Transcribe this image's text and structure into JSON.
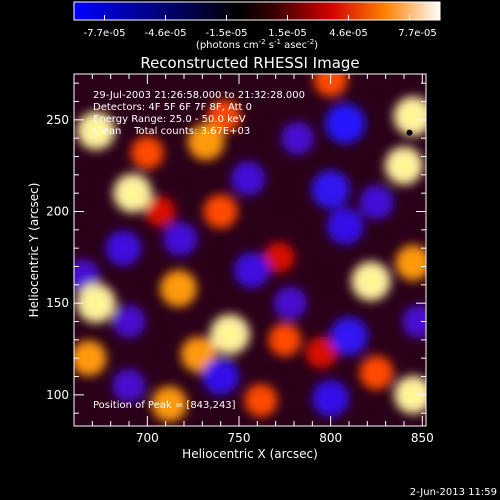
{
  "chart_data": {
    "type": "heatmap",
    "title": "Reconstructed RHESSI Image",
    "xlabel": "Heliocentric X (arcsec)",
    "ylabel": "Heliocentric Y (arcsec)",
    "xlim": [
      660,
      852
    ],
    "ylim": [
      83,
      275
    ],
    "x_ticks": [
      700,
      750,
      800,
      850
    ],
    "y_ticks": [
      100,
      150,
      200,
      250
    ],
    "colorbar": {
      "ticks": [
        "-7.7e-05",
        "-4.6e-05",
        "-1.5e-05",
        "1.5e-05",
        "4.6e-05",
        "7.7e-05"
      ],
      "range": [
        -7.7e-05,
        7.7e-05
      ],
      "unit_text": "(photons cm",
      "unit_sup1": "-2",
      "unit_mid": " s",
      "unit_sup2": "-1",
      "unit_end": " asec",
      "unit_sup3": "-2",
      "unit_close": ")"
    },
    "info_lines": [
      "29-Jul-2003 21:26:58.000 to 21:32:28.000",
      "Detectors: 4F 5F 6F 7F 8F, Att 0",
      "Energy Range: 25.0 - 50.0 keV",
      "Clean    Total counts: 3.67E+03"
    ],
    "peak_text": "Position of Peak = [843,243]",
    "peak_position": [
      843,
      243
    ],
    "blobs": [
      {
        "x": 672,
        "y": 244,
        "value": 7e-05
      },
      {
        "x": 700,
        "y": 232,
        "value": 5e-05
      },
      {
        "x": 732,
        "y": 238,
        "value": 6.5e-05
      },
      {
        "x": 742,
        "y": 252,
        "value": 5e-05
      },
      {
        "x": 692,
        "y": 210,
        "value": 7.2e-05
      },
      {
        "x": 740,
        "y": 200,
        "value": 5.5e-05
      },
      {
        "x": 707,
        "y": 200,
        "value": 4e-05
      },
      {
        "x": 845,
        "y": 252,
        "value": 7.5e-05
      },
      {
        "x": 840,
        "y": 225,
        "value": 7e-05
      },
      {
        "x": 800,
        "y": 272,
        "value": 5.5e-05
      },
      {
        "x": 672,
        "y": 150,
        "value": 7.5e-05
      },
      {
        "x": 668,
        "y": 120,
        "value": 6e-05
      },
      {
        "x": 717,
        "y": 158,
        "value": 6.5e-05
      },
      {
        "x": 745,
        "y": 133,
        "value": 7.7e-05
      },
      {
        "x": 728,
        "y": 122,
        "value": 6e-05
      },
      {
        "x": 775,
        "y": 130,
        "value": 5e-05
      },
      {
        "x": 822,
        "y": 162,
        "value": 7.5e-05
      },
      {
        "x": 845,
        "y": 172,
        "value": 6e-05
      },
      {
        "x": 772,
        "y": 175,
        "value": 4e-05
      },
      {
        "x": 795,
        "y": 123,
        "value": 4.5e-05
      },
      {
        "x": 845,
        "y": 100,
        "value": 7e-05
      },
      {
        "x": 825,
        "y": 112,
        "value": 5.5e-05
      },
      {
        "x": 712,
        "y": 95,
        "value": 6e-05
      },
      {
        "x": 762,
        "y": 97,
        "value": 5e-05
      },
      {
        "x": 687,
        "y": 180,
        "value": -6e-05
      },
      {
        "x": 755,
        "y": 218,
        "value": -5.5e-05
      },
      {
        "x": 782,
        "y": 240,
        "value": -5e-05
      },
      {
        "x": 800,
        "y": 212,
        "value": -7e-05
      },
      {
        "x": 808,
        "y": 248,
        "value": -7.7e-05
      },
      {
        "x": 808,
        "y": 192,
        "value": -6.5e-05
      },
      {
        "x": 810,
        "y": 132,
        "value": -7e-05
      },
      {
        "x": 800,
        "y": 98,
        "value": -6.5e-05
      },
      {
        "x": 740,
        "y": 110,
        "value": -6.5e-05
      },
      {
        "x": 690,
        "y": 105,
        "value": -5e-05
      },
      {
        "x": 757,
        "y": 168,
        "value": -6e-05
      },
      {
        "x": 718,
        "y": 185,
        "value": -5.5e-05
      },
      {
        "x": 825,
        "y": 205,
        "value": -5.5e-05
      },
      {
        "x": 665,
        "y": 165,
        "value": -5e-05
      },
      {
        "x": 778,
        "y": 150,
        "value": -5e-05
      },
      {
        "x": 690,
        "y": 140,
        "value": -5e-05
      },
      {
        "x": 848,
        "y": 140,
        "value": -5e-05
      }
    ]
  },
  "footer": {
    "timestamp": "2-Jun-2013 11:59"
  }
}
